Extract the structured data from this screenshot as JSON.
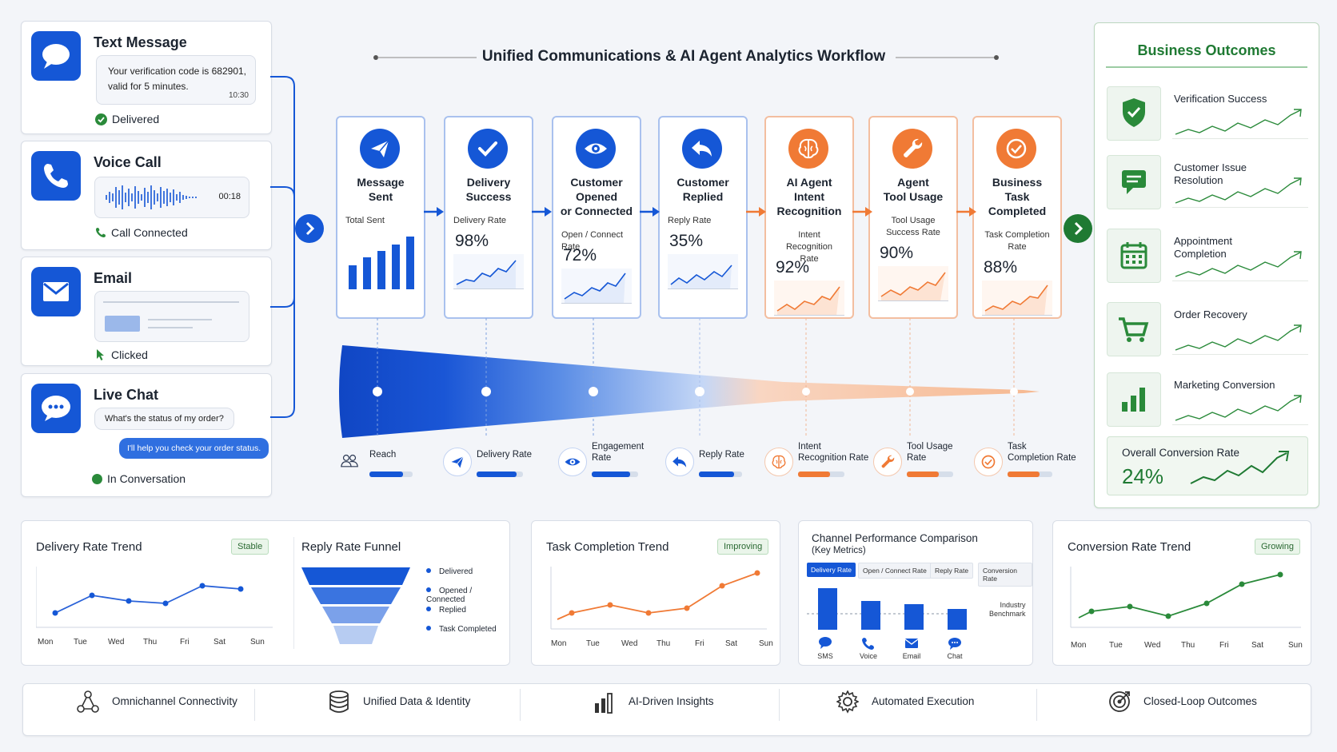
{
  "title": "Unified Communications & AI Agent Analytics Workflow",
  "channels": {
    "sms": {
      "title": "Text Message",
      "message": "Your verification code is 682901, valid for 5 minutes.",
      "time": "10:30",
      "status": "Delivered"
    },
    "voice": {
      "title": "Voice Call",
      "duration": "00:18",
      "status": "Call Connected"
    },
    "email": {
      "title": "Email",
      "status": "Clicked"
    },
    "chat": {
      "title": "Live Chat",
      "user_msg": "What's the status of my order?",
      "agent_msg": "I'll help you check your order status.",
      "status": "In Conversation"
    }
  },
  "stages": [
    {
      "name": [
        "Message",
        "Sent"
      ],
      "metric": [
        "Total Sent"
      ],
      "value": "",
      "color": "blue",
      "icon": "send-icon"
    },
    {
      "name": [
        "Delivery",
        "Success"
      ],
      "metric": [
        "Delivery Rate"
      ],
      "value": "98%",
      "color": "blue",
      "icon": "check-icon"
    },
    {
      "name": [
        "Customer",
        "Opened",
        "or Connected"
      ],
      "metric": [
        "Open / Connect Rate"
      ],
      "value": "72%",
      "color": "blue",
      "icon": "eye-icon"
    },
    {
      "name": [
        "Customer",
        "Replied"
      ],
      "metric": [
        "Reply Rate"
      ],
      "value": "35%",
      "color": "blue",
      "icon": "reply-icon"
    },
    {
      "name": [
        "AI Agent",
        "Intent",
        "Recognition"
      ],
      "metric": [
        "Intent Recognition",
        "Rate"
      ],
      "value": "92%",
      "color": "orange",
      "icon": "brain-icon"
    },
    {
      "name": [
        "Agent",
        "Tool Usage"
      ],
      "metric": [
        "Tool Usage",
        "Success Rate"
      ],
      "value": "90%",
      "color": "orange",
      "icon": "wrench-icon"
    },
    {
      "name": [
        "Business",
        "Task",
        "Completed"
      ],
      "metric": [
        "Task Completion",
        "Rate"
      ],
      "value": "88%",
      "color": "orange",
      "icon": "check-circle-icon"
    }
  ],
  "funnel_legend": [
    {
      "label": [
        "Reach"
      ],
      "icon": "people-icon"
    },
    {
      "label": [
        "Delivery Rate"
      ],
      "icon": "send-icon"
    },
    {
      "label": [
        "Engagement",
        "Rate"
      ],
      "icon": "eye-icon"
    },
    {
      "label": [
        "Reply Rate"
      ],
      "icon": "reply-icon"
    },
    {
      "label": [
        "Intent",
        "Recognition Rate"
      ],
      "icon": "brain-icon"
    },
    {
      "label": [
        "Tool Usage",
        "Rate"
      ],
      "icon": "wrench-icon"
    },
    {
      "label": [
        "Task",
        "Completion Rate"
      ],
      "icon": "check-circle-icon"
    }
  ],
  "outcomes": {
    "title": "Business Outcomes",
    "items": [
      {
        "label": [
          "Verification Success"
        ],
        "icon": "shield-check-icon"
      },
      {
        "label": [
          "Customer Issue",
          "Resolution"
        ],
        "icon": "chat-icon"
      },
      {
        "label": [
          "Appointment",
          "Completion"
        ],
        "icon": "calendar-icon"
      },
      {
        "label": [
          "Order Recovery"
        ],
        "icon": "cart-icon"
      },
      {
        "label": [
          "Marketing Conversion"
        ],
        "icon": "bar-chart-icon"
      }
    ],
    "overall_label": "Overall Conversion Rate",
    "overall_value": "24%"
  },
  "bottom": {
    "delivery_trend": {
      "title": "Delivery Rate Trend",
      "badge": "Stable",
      "days": [
        "Mon",
        "Tue",
        "Wed",
        "Thu",
        "Fri",
        "Sat",
        "Sun"
      ]
    },
    "reply_funnel": {
      "title": "Reply Rate Funnel",
      "legend": [
        "Delivered",
        "Opened / Connected",
        "Replied",
        "Task Completed"
      ]
    },
    "task_trend": {
      "title": "Task Completion Trend",
      "badge": "Improving",
      "days": [
        "Mon",
        "Tue",
        "Wed",
        "Thu",
        "Fri",
        "Sat",
        "Sun"
      ]
    },
    "channel_perf": {
      "title": "Channel Performance Comparison",
      "subtitle": "(Key Metrics)",
      "tabs": [
        "Delivery Rate",
        "Open / Connect Rate",
        "Reply Rate",
        "Conversion Rate"
      ],
      "benchmark": [
        "Industry",
        "Benchmark"
      ],
      "channels": [
        "SMS",
        "Voice",
        "Email",
        "Chat"
      ]
    },
    "conversion_trend": {
      "title": "Conversion Rate Trend",
      "badge": "Growing",
      "days": [
        "Mon",
        "Tue",
        "Wed",
        "Thu",
        "Fri",
        "Sat",
        "Sun"
      ]
    }
  },
  "features": [
    "Omnichannel Connectivity",
    "Unified Data & Identity",
    "AI-Driven Insights",
    "Automated Execution",
    "Closed-Loop Outcomes"
  ],
  "colors": {
    "blue": "#1557d6",
    "orange": "#f07a35",
    "green": "#2a8a3a"
  }
}
